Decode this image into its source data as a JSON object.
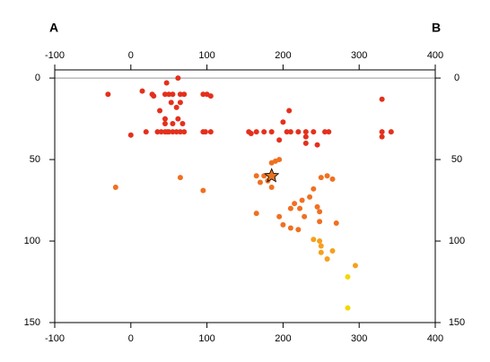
{
  "chart_data": {
    "type": "scatter",
    "annotations": [
      "A",
      "B"
    ],
    "xlim": [
      -100,
      400
    ],
    "xticks": [
      -100,
      0,
      100,
      200,
      300,
      400
    ],
    "ylim": [
      150,
      -5
    ],
    "yticks": [
      0,
      50,
      100,
      150
    ],
    "reference_line": 0,
    "series": [
      {
        "color": "#e4301c",
        "marker": "circle",
        "x": [
          -30,
          15,
          28,
          30,
          45,
          50,
          55,
          65,
          70,
          95,
          100,
          105,
          62,
          47,
          53,
          65,
          60,
          38,
          330,
          45,
          62,
          45,
          55,
          68,
          200,
          208,
          0,
          20,
          35,
          40,
          45,
          48,
          50,
          55,
          60,
          65,
          70,
          95,
          98,
          105,
          155,
          158,
          165,
          175,
          185,
          205,
          210,
          220,
          230,
          240,
          255,
          260,
          330,
          342,
          195,
          230,
          330,
          230,
          245
        ],
        "values": [
          10,
          8,
          10,
          11,
          10,
          10,
          10,
          10,
          10,
          10,
          10,
          11,
          0,
          3,
          15,
          15,
          18,
          20,
          13,
          25,
          25,
          28,
          28,
          28,
          27,
          20,
          35,
          33,
          33,
          33,
          33,
          33,
          33,
          33,
          33,
          33,
          33,
          33,
          33,
          33,
          33,
          34,
          33,
          33,
          33,
          33,
          33,
          33,
          33,
          33,
          33,
          33,
          33,
          33,
          38,
          36,
          36,
          40,
          41
        ]
      },
      {
        "color": "#f07020",
        "marker": "circle",
        "x": [
          185,
          195,
          190,
          165,
          175,
          170,
          180,
          185,
          250,
          258,
          265,
          240,
          -20,
          65,
          95,
          235,
          225,
          215,
          210,
          222,
          245,
          248,
          165,
          195,
          228,
          248,
          200,
          270,
          220,
          210
        ],
        "values": [
          52,
          50,
          51,
          60,
          60,
          64,
          63,
          67,
          61,
          60,
          62,
          68,
          67,
          61,
          69,
          73,
          75,
          77,
          80,
          80,
          79,
          82,
          83,
          85,
          85,
          88,
          90,
          89,
          93,
          92
        ]
      },
      {
        "color": "#f5a01e",
        "marker": "circle",
        "x": [
          240,
          248,
          250,
          265,
          250,
          258,
          295
        ],
        "values": [
          99,
          100,
          103,
          106,
          107,
          111,
          115
        ]
      },
      {
        "color": "#f2d800",
        "marker": "circle",
        "x": [
          285,
          285
        ],
        "values": [
          122,
          141
        ]
      },
      {
        "color": "#e8731e",
        "marker": "star",
        "x": [
          185
        ],
        "values": [
          60
        ]
      }
    ]
  }
}
